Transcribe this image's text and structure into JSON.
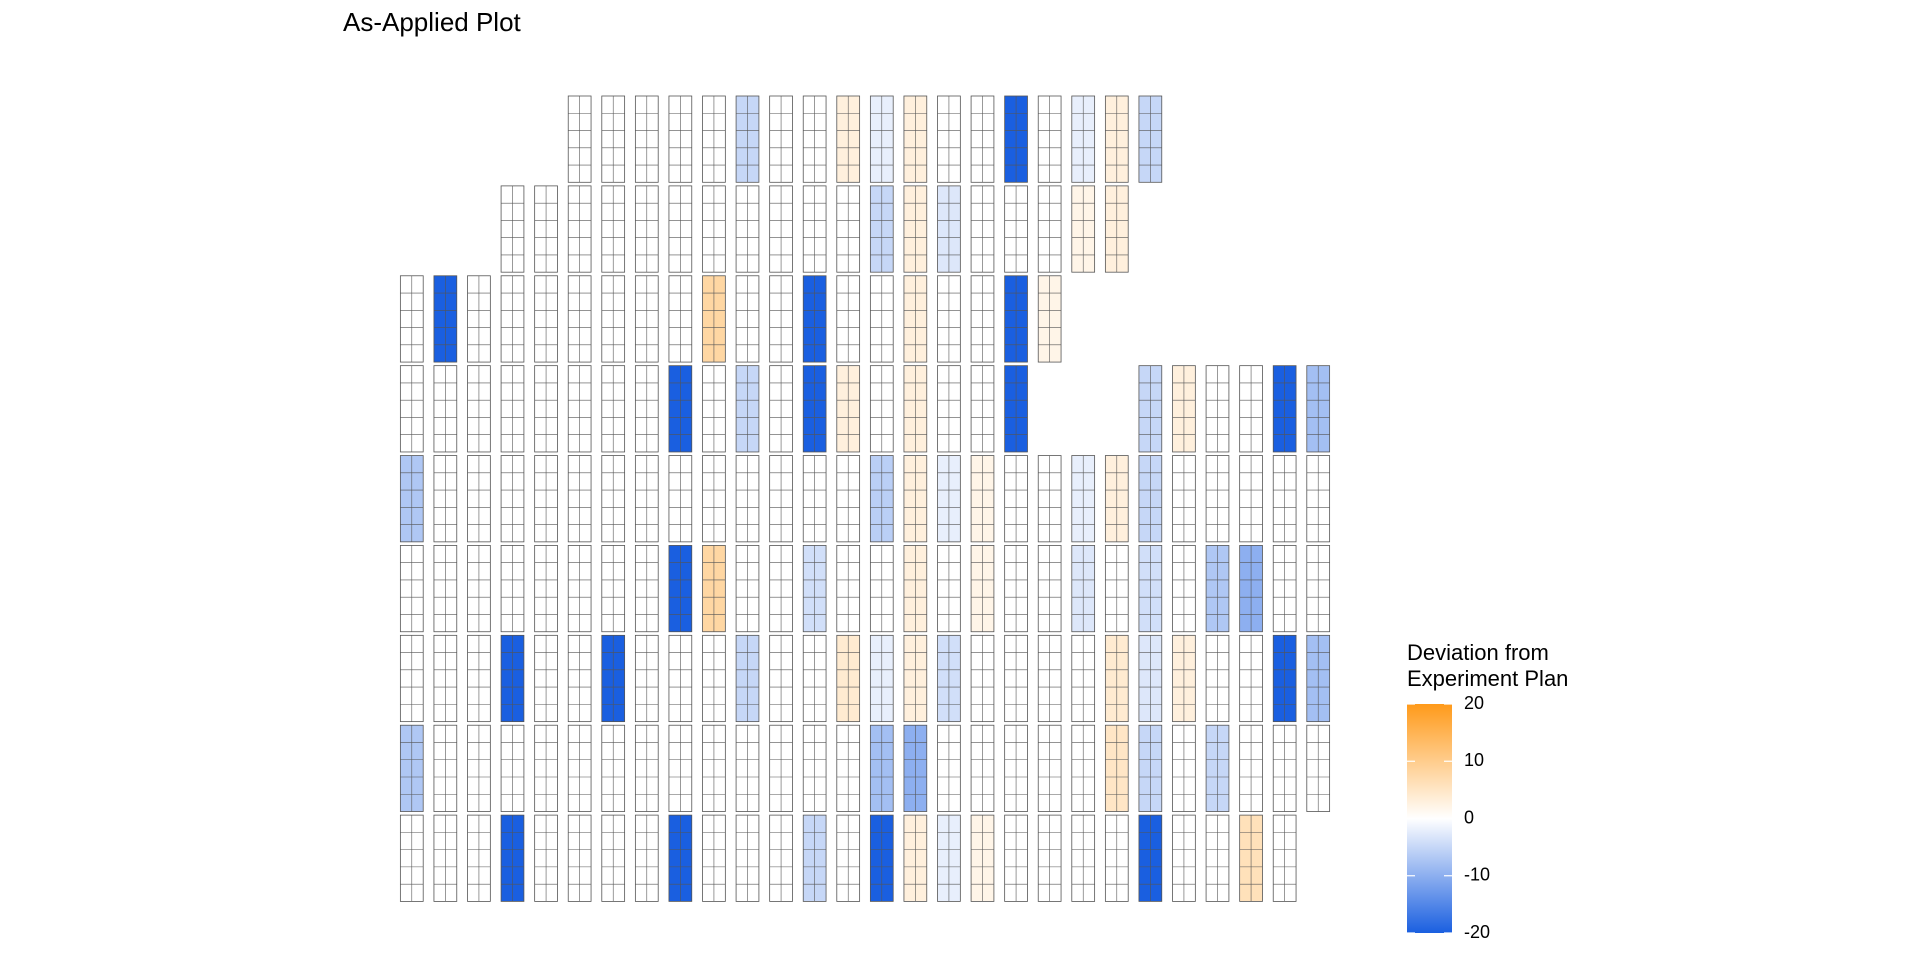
{
  "chart_data": {
    "type": "tilemap",
    "title": "As-Applied Plot",
    "legend_title": [
      "Deviation from",
      "Experiment Plan"
    ],
    "colorbar_lim": [
      -20,
      20
    ],
    "colorbar_ticks": [
      -20,
      -10,
      0,
      10,
      20
    ],
    "colors": {
      "low": "#1a5fe0",
      "mid": "#ffffff",
      "high": "#ff9a1a"
    },
    "values": [
      [
        null,
        null,
        0,
        0,
        -7,
        0,
        0,
        -7,
        0
      ],
      [
        null,
        null,
        -20,
        0,
        0,
        0,
        0,
        0,
        0
      ],
      [
        null,
        null,
        0,
        0,
        0,
        0,
        0,
        0,
        0
      ],
      [
        null,
        0,
        0,
        0,
        0,
        0,
        -20,
        0,
        -20
      ],
      [
        null,
        0,
        0,
        0,
        0,
        0,
        0,
        0,
        0
      ],
      [
        0,
        0,
        0,
        0,
        0,
        0,
        0,
        0,
        0
      ],
      [
        0,
        0,
        0,
        0,
        0,
        0,
        -20,
        0,
        0
      ],
      [
        0,
        0,
        0,
        0,
        0,
        0,
        0,
        0,
        0
      ],
      [
        0,
        0,
        0,
        -20,
        0,
        -20,
        0,
        0,
        -20
      ],
      [
        0,
        0,
        8,
        0,
        0,
        8,
        0,
        0,
        0
      ],
      [
        -5,
        0,
        0,
        -5,
        0,
        0,
        -5,
        0,
        0
      ],
      [
        0,
        0,
        0,
        0,
        0,
        0,
        0,
        0,
        0
      ],
      [
        0,
        0,
        -20,
        -20,
        0,
        -4,
        0,
        0,
        -5
      ],
      [
        3,
        0,
        0,
        3,
        0,
        0,
        4,
        0,
        0
      ],
      [
        -2,
        -5,
        0,
        0,
        -6,
        0,
        -2,
        -8,
        -20
      ],
      [
        3,
        3,
        3,
        3,
        3,
        3,
        3,
        -10,
        3
      ],
      [
        0,
        -3,
        0,
        0,
        -2,
        0,
        -4,
        0,
        -2
      ],
      [
        0,
        0,
        0,
        0,
        2,
        2,
        0,
        0,
        2
      ],
      [
        -20,
        0,
        -20,
        -20,
        0,
        0,
        0,
        0,
        0
      ],
      [
        0,
        0,
        2,
        null,
        0,
        0,
        0,
        0,
        0
      ],
      [
        -2,
        2,
        null,
        null,
        -2,
        -3,
        0,
        0,
        0
      ],
      [
        3,
        3,
        null,
        null,
        3,
        0,
        4,
        5,
        0
      ],
      [
        -5,
        null,
        null,
        -5,
        -5,
        -4,
        -3,
        -5,
        -20
      ],
      [
        null,
        null,
        null,
        3,
        0,
        0,
        3,
        0,
        0
      ],
      [
        null,
        null,
        null,
        0,
        0,
        -7,
        0,
        -5,
        0
      ],
      [
        null,
        null,
        null,
        0,
        0,
        -10,
        0,
        0,
        6
      ],
      [
        null,
        null,
        null,
        -20,
        0,
        0,
        -20,
        0,
        0
      ],
      [
        null,
        null,
        null,
        -8,
        0,
        0,
        -8,
        0,
        null
      ]
    ]
  }
}
